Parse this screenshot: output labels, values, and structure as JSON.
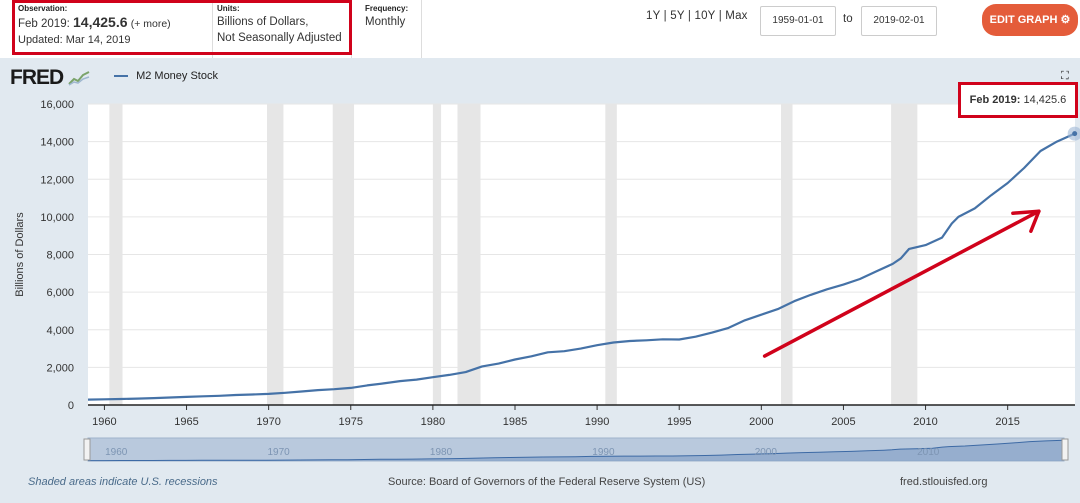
{
  "observation": {
    "label": "Observation:",
    "period": "Feb 2019:",
    "value": "14,425.6",
    "more": "(+ more)",
    "updated": "Updated: Mar 14, 2019"
  },
  "units": {
    "label": "Units:",
    "line1": "Billions of Dollars,",
    "line2": "Not Seasonally Adjusted"
  },
  "frequency": {
    "label": "Frequency:",
    "value": "Monthly"
  },
  "range_links": "1Y | 5Y | 10Y | Max",
  "date_start": "1959-01-01",
  "to_label": "to",
  "date_end": "2019-02-01",
  "edit_button": "EDIT GRAPH ⚙",
  "logo": "FRED",
  "fullscreen_icon": "⛶",
  "footer": {
    "recession_note": "Shaded areas indicate U.S. recessions",
    "source": "Source: Board of Governors of the Federal Reserve System (US)",
    "site": "fred.stlouisfed.org"
  },
  "tooltip": {
    "period": "Feb 2019:",
    "value": "14,425.6"
  },
  "colors": {
    "series": "#4572a7",
    "recession": "#e6e6e6",
    "annotation": "#d0021b",
    "chart_bg": "#e1e9f0",
    "edit_button": "#e45c3a"
  },
  "chart_data": {
    "type": "line",
    "title": "",
    "ylabel": "Billions of Dollars",
    "xlim": [
      1959.0,
      2019.1
    ],
    "ylim": [
      0,
      16000
    ],
    "yticks": [
      0,
      2000,
      4000,
      6000,
      8000,
      10000,
      12000,
      14000,
      16000
    ],
    "ytick_labels": [
      "0",
      "2,000",
      "4,000",
      "6,000",
      "8,000",
      "10,000",
      "12,000",
      "14,000",
      "16,000"
    ],
    "xticks": [
      1960,
      1965,
      1970,
      1975,
      1980,
      1985,
      1990,
      1995,
      2000,
      2005,
      2010,
      2015
    ],
    "xtick_labels": [
      "1960",
      "1965",
      "1970",
      "1975",
      "1980",
      "1985",
      "1990",
      "1995",
      "2000",
      "2005",
      "2010",
      "2015"
    ],
    "grid": true,
    "legend_placement": "top-left",
    "series": [
      {
        "name": "M2 Money Stock",
        "x": [
          1959.0,
          1960,
          1961,
          1962,
          1963,
          1964,
          1965,
          1966,
          1967,
          1968,
          1969,
          1970,
          1971,
          1972,
          1973,
          1974,
          1975,
          1976,
          1977,
          1978,
          1979,
          1980,
          1981,
          1982,
          1983,
          1984,
          1985,
          1986,
          1987,
          1988,
          1989,
          1990,
          1991,
          1992,
          1993,
          1994,
          1995,
          1996,
          1997,
          1998,
          1999,
          2000,
          2001,
          2002,
          2003,
          2004,
          2005,
          2006,
          2007,
          2008,
          2008.5,
          2009,
          2010,
          2011,
          2011.6,
          2012,
          2013,
          2014,
          2015,
          2016,
          2017,
          2018,
          2019.08
        ],
        "y": [
          287,
          305,
          320,
          340,
          365,
          400,
          430,
          460,
          490,
          530,
          560,
          590,
          650,
          720,
          790,
          840,
          910,
          1040,
          1150,
          1270,
          1350,
          1480,
          1600,
          1750,
          2050,
          2200,
          2420,
          2590,
          2800,
          2860,
          3000,
          3180,
          3320,
          3400,
          3440,
          3490,
          3480,
          3630,
          3850,
          4100,
          4500,
          4800,
          5100,
          5520,
          5850,
          6150,
          6400,
          6700,
          7100,
          7500,
          7800,
          8300,
          8500,
          8900,
          9650,
          10000,
          10450,
          11150,
          11800,
          12600,
          13500,
          14000,
          14425.6
        ]
      }
    ],
    "recessions": [
      [
        1960.3,
        1961.1
      ],
      [
        1969.9,
        1970.9
      ],
      [
        1973.9,
        1975.2
      ],
      [
        1980.0,
        1980.5
      ],
      [
        1981.5,
        1982.9
      ],
      [
        1990.5,
        1991.2
      ],
      [
        2001.2,
        2001.9
      ],
      [
        2007.9,
        2009.5
      ]
    ],
    "annotation": "Feb 2019: 14,425.6"
  }
}
